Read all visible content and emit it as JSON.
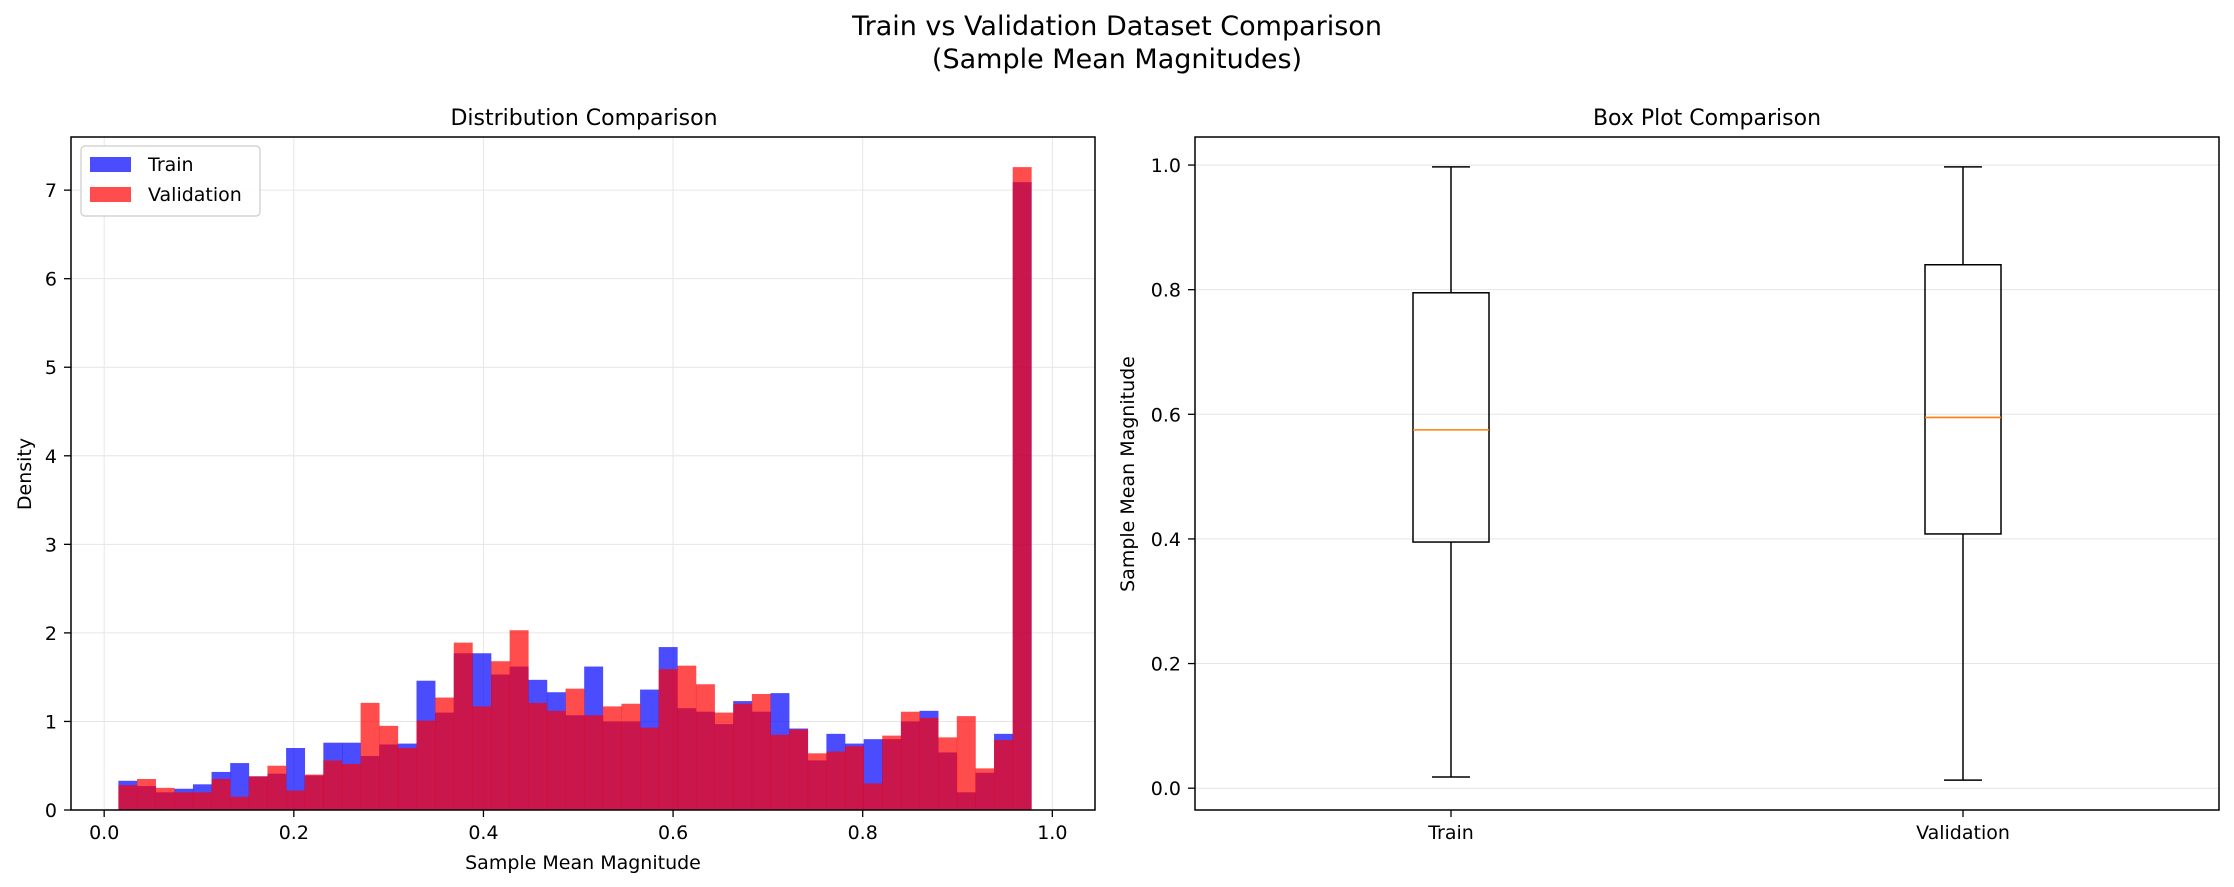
{
  "figure": {
    "suptitle_line1": "Train vs Validation Dataset Comparison",
    "suptitle_line2": "(Sample Mean Magnitudes)"
  },
  "colors": {
    "train": "#0000ff",
    "validation": "#ff0000",
    "overlap": "#cc1a4f",
    "median": "#ff7f0e",
    "grid": "#e6e6e6"
  },
  "chart_data": [
    {
      "type": "histogram",
      "title": "Distribution Comparison",
      "xlabel": "Sample Mean Magnitude",
      "ylabel": "Density",
      "xlim": [
        -0.035,
        1.045
      ],
      "ylim": [
        0,
        7.6
      ],
      "xticks": [
        0.0,
        0.2,
        0.4,
        0.6,
        0.8,
        1.0
      ],
      "xtick_labels": [
        "0.0",
        "0.2",
        "0.4",
        "0.6",
        "0.8",
        "1.0"
      ],
      "yticks": [
        0,
        1,
        2,
        3,
        4,
        5,
        6,
        7
      ],
      "ytick_labels": [
        "0",
        "1",
        "2",
        "3",
        "4",
        "5",
        "6",
        "7"
      ],
      "grid": true,
      "legend_position": "top-left",
      "bin_start": 0.015,
      "bin_width": 0.01965,
      "series": [
        {
          "name": "Train",
          "color": "#0000ff",
          "alpha": 0.7,
          "values": [
            0.33,
            0.27,
            0.2,
            0.24,
            0.29,
            0.43,
            0.53,
            0.38,
            0.41,
            0.7,
            0.39,
            0.76,
            0.76,
            0.61,
            0.74,
            0.75,
            1.46,
            1.1,
            1.77,
            1.77,
            1.53,
            1.62,
            1.47,
            1.33,
            1.07,
            1.62,
            1.0,
            1.0,
            1.36,
            1.84,
            1.15,
            1.11,
            0.97,
            1.23,
            1.11,
            1.32,
            0.92,
            0.56,
            0.86,
            0.75,
            0.8,
            0.8,
            1.0,
            1.12,
            0.65,
            0.2,
            0.42,
            0.86,
            7.09
          ]
        },
        {
          "name": "Validation",
          "color": "#ff0000",
          "alpha": 0.7,
          "values": [
            0.28,
            0.35,
            0.25,
            0.2,
            0.2,
            0.35,
            0.15,
            0.38,
            0.5,
            0.22,
            0.4,
            0.56,
            0.52,
            1.21,
            0.95,
            0.7,
            1.01,
            1.27,
            1.89,
            1.17,
            1.68,
            2.03,
            1.21,
            1.12,
            1.37,
            1.07,
            1.17,
            1.2,
            0.93,
            1.59,
            1.63,
            1.42,
            1.1,
            1.2,
            1.31,
            0.85,
            0.91,
            0.64,
            0.66,
            0.72,
            0.3,
            0.84,
            1.11,
            1.04,
            0.82,
            1.06,
            0.47,
            0.79,
            7.26
          ]
        }
      ]
    },
    {
      "type": "box",
      "title": "Box Plot Comparison",
      "xlabel": "",
      "ylabel": "Sample Mean Magnitude",
      "ylim": [
        -0.035,
        1.045
      ],
      "yticks": [
        0.0,
        0.2,
        0.4,
        0.6,
        0.8,
        1.0
      ],
      "ytick_labels": [
        "0.0",
        "0.2",
        "0.4",
        "0.6",
        "0.8",
        "1.0"
      ],
      "grid": true,
      "categories": [
        "Train",
        "Validation"
      ],
      "boxes": [
        {
          "name": "Train",
          "whisker_low": 0.018,
          "q1": 0.395,
          "median": 0.575,
          "q3": 0.795,
          "whisker_high": 0.997
        },
        {
          "name": "Validation",
          "whisker_low": 0.013,
          "q1": 0.408,
          "median": 0.595,
          "q3": 0.84,
          "whisker_high": 0.997
        }
      ]
    }
  ]
}
